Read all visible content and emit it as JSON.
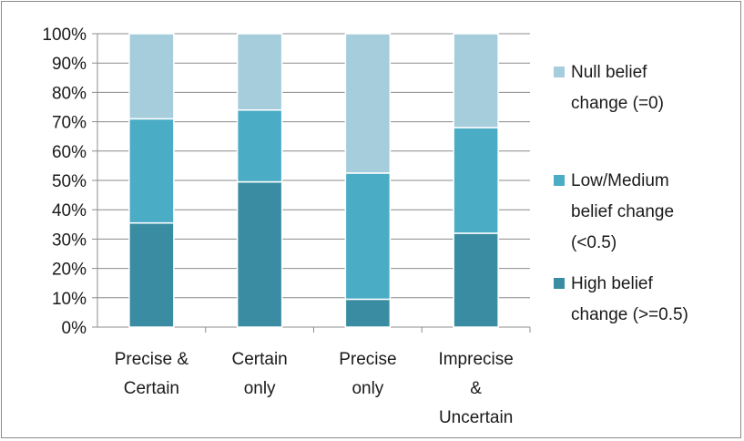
{
  "chart_data": {
    "type": "bar",
    "stacked": true,
    "categories": [
      [
        "Precise &",
        "Certain"
      ],
      [
        "Certain",
        "only"
      ],
      [
        "Precise",
        "only"
      ],
      [
        "Imprecise",
        "&",
        "Uncertain"
      ]
    ],
    "series": [
      {
        "name": [
          "High belief",
          "change (>=0.5)"
        ],
        "color": "#3a8ca3",
        "values": [
          35.5,
          49.5,
          9.5,
          32
        ]
      },
      {
        "name": [
          "Low/Medium",
          "belief change",
          "(<0.5)"
        ],
        "color": "#4bacc6",
        "values": [
          35.5,
          24.5,
          43,
          36
        ]
      },
      {
        "name": [
          "Null belief",
          "change (=0)"
        ],
        "color": "#a5cddc",
        "values": [
          29,
          26,
          47.5,
          32
        ]
      }
    ],
    "yticks": [
      "0%",
      "10%",
      "20%",
      "30%",
      "40%",
      "50%",
      "60%",
      "70%",
      "80%",
      "90%",
      "100%"
    ],
    "ylim": [
      0,
      100
    ],
    "grid": true,
    "legend_position": "right"
  }
}
